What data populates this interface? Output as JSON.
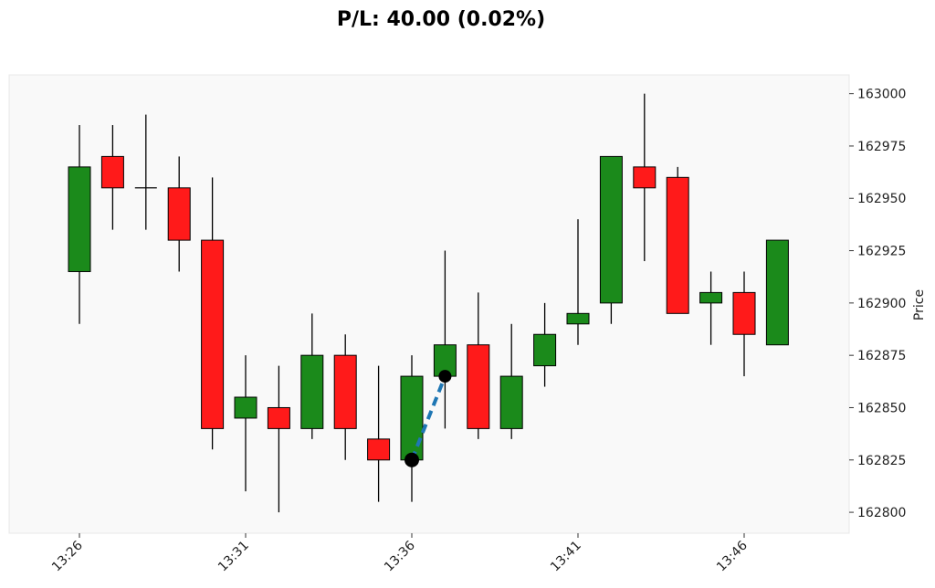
{
  "chart_data": {
    "type": "candlestick",
    "title": "P/L: 40.00 (0.02%)",
    "ylabel": "Price",
    "xlabel": "",
    "ylim": [
      162790,
      163009
    ],
    "yticks": [
      162800,
      162825,
      162850,
      162875,
      162900,
      162925,
      162950,
      162975,
      163000
    ],
    "xtick_labels": [
      {
        "index": 0,
        "label": "13:26"
      },
      {
        "index": 5,
        "label": "13:31"
      },
      {
        "index": 10,
        "label": "13:36"
      },
      {
        "index": 15,
        "label": "13:41"
      },
      {
        "index": 20,
        "label": "13:46"
      }
    ],
    "colors": {
      "up": "#1b8a1b",
      "down": "#ff1a1a",
      "plot_bg": "#f9f9f9",
      "trade_line": "#1f77b4",
      "marker": "#000000"
    },
    "candles": [
      {
        "time": "13:26",
        "open": 162915,
        "high": 162985,
        "low": 162890,
        "close": 162965
      },
      {
        "time": "13:27",
        "open": 162970,
        "high": 162985,
        "low": 162935,
        "close": 162955
      },
      {
        "time": "13:28",
        "open": 162955,
        "high": 162990,
        "low": 162935,
        "close": 162955
      },
      {
        "time": "13:29",
        "open": 162955,
        "high": 162970,
        "low": 162915,
        "close": 162930
      },
      {
        "time": "13:30",
        "open": 162930,
        "high": 162960,
        "low": 162830,
        "close": 162840
      },
      {
        "time": "13:31",
        "open": 162845,
        "high": 162875,
        "low": 162810,
        "close": 162855
      },
      {
        "time": "13:32",
        "open": 162850,
        "high": 162870,
        "low": 162800,
        "close": 162840
      },
      {
        "time": "13:33",
        "open": 162840,
        "high": 162895,
        "low": 162835,
        "close": 162875
      },
      {
        "time": "13:34",
        "open": 162875,
        "high": 162885,
        "low": 162825,
        "close": 162840
      },
      {
        "time": "13:35",
        "open": 162835,
        "high": 162870,
        "low": 162805,
        "close": 162825
      },
      {
        "time": "13:36",
        "open": 162825,
        "high": 162875,
        "low": 162805,
        "close": 162865
      },
      {
        "time": "13:37",
        "open": 162865,
        "high": 162925,
        "low": 162840,
        "close": 162880
      },
      {
        "time": "13:38",
        "open": 162880,
        "high": 162905,
        "low": 162835,
        "close": 162840
      },
      {
        "time": "13:39",
        "open": 162840,
        "high": 162890,
        "low": 162835,
        "close": 162865
      },
      {
        "time": "13:40",
        "open": 162870,
        "high": 162900,
        "low": 162860,
        "close": 162885
      },
      {
        "time": "13:41",
        "open": 162890,
        "high": 162940,
        "low": 162880,
        "close": 162895
      },
      {
        "time": "13:42",
        "open": 162900,
        "high": 162970,
        "low": 162890,
        "close": 162970
      },
      {
        "time": "13:43",
        "open": 162965,
        "high": 163000,
        "low": 162920,
        "close": 162955
      },
      {
        "time": "13:44",
        "open": 162960,
        "high": 162965,
        "low": 162895,
        "close": 162895
      },
      {
        "time": "13:45",
        "open": 162900,
        "high": 162915,
        "low": 162880,
        "close": 162905
      },
      {
        "time": "13:46",
        "open": 162905,
        "high": 162915,
        "low": 162865,
        "close": 162885
      },
      {
        "time": "13:47",
        "open": 162880,
        "high": 162930,
        "low": 162880,
        "close": 162930
      }
    ],
    "trade": {
      "entry": {
        "index": 10,
        "price": 162825
      },
      "exit": {
        "index": 11,
        "price": 162865
      }
    }
  }
}
